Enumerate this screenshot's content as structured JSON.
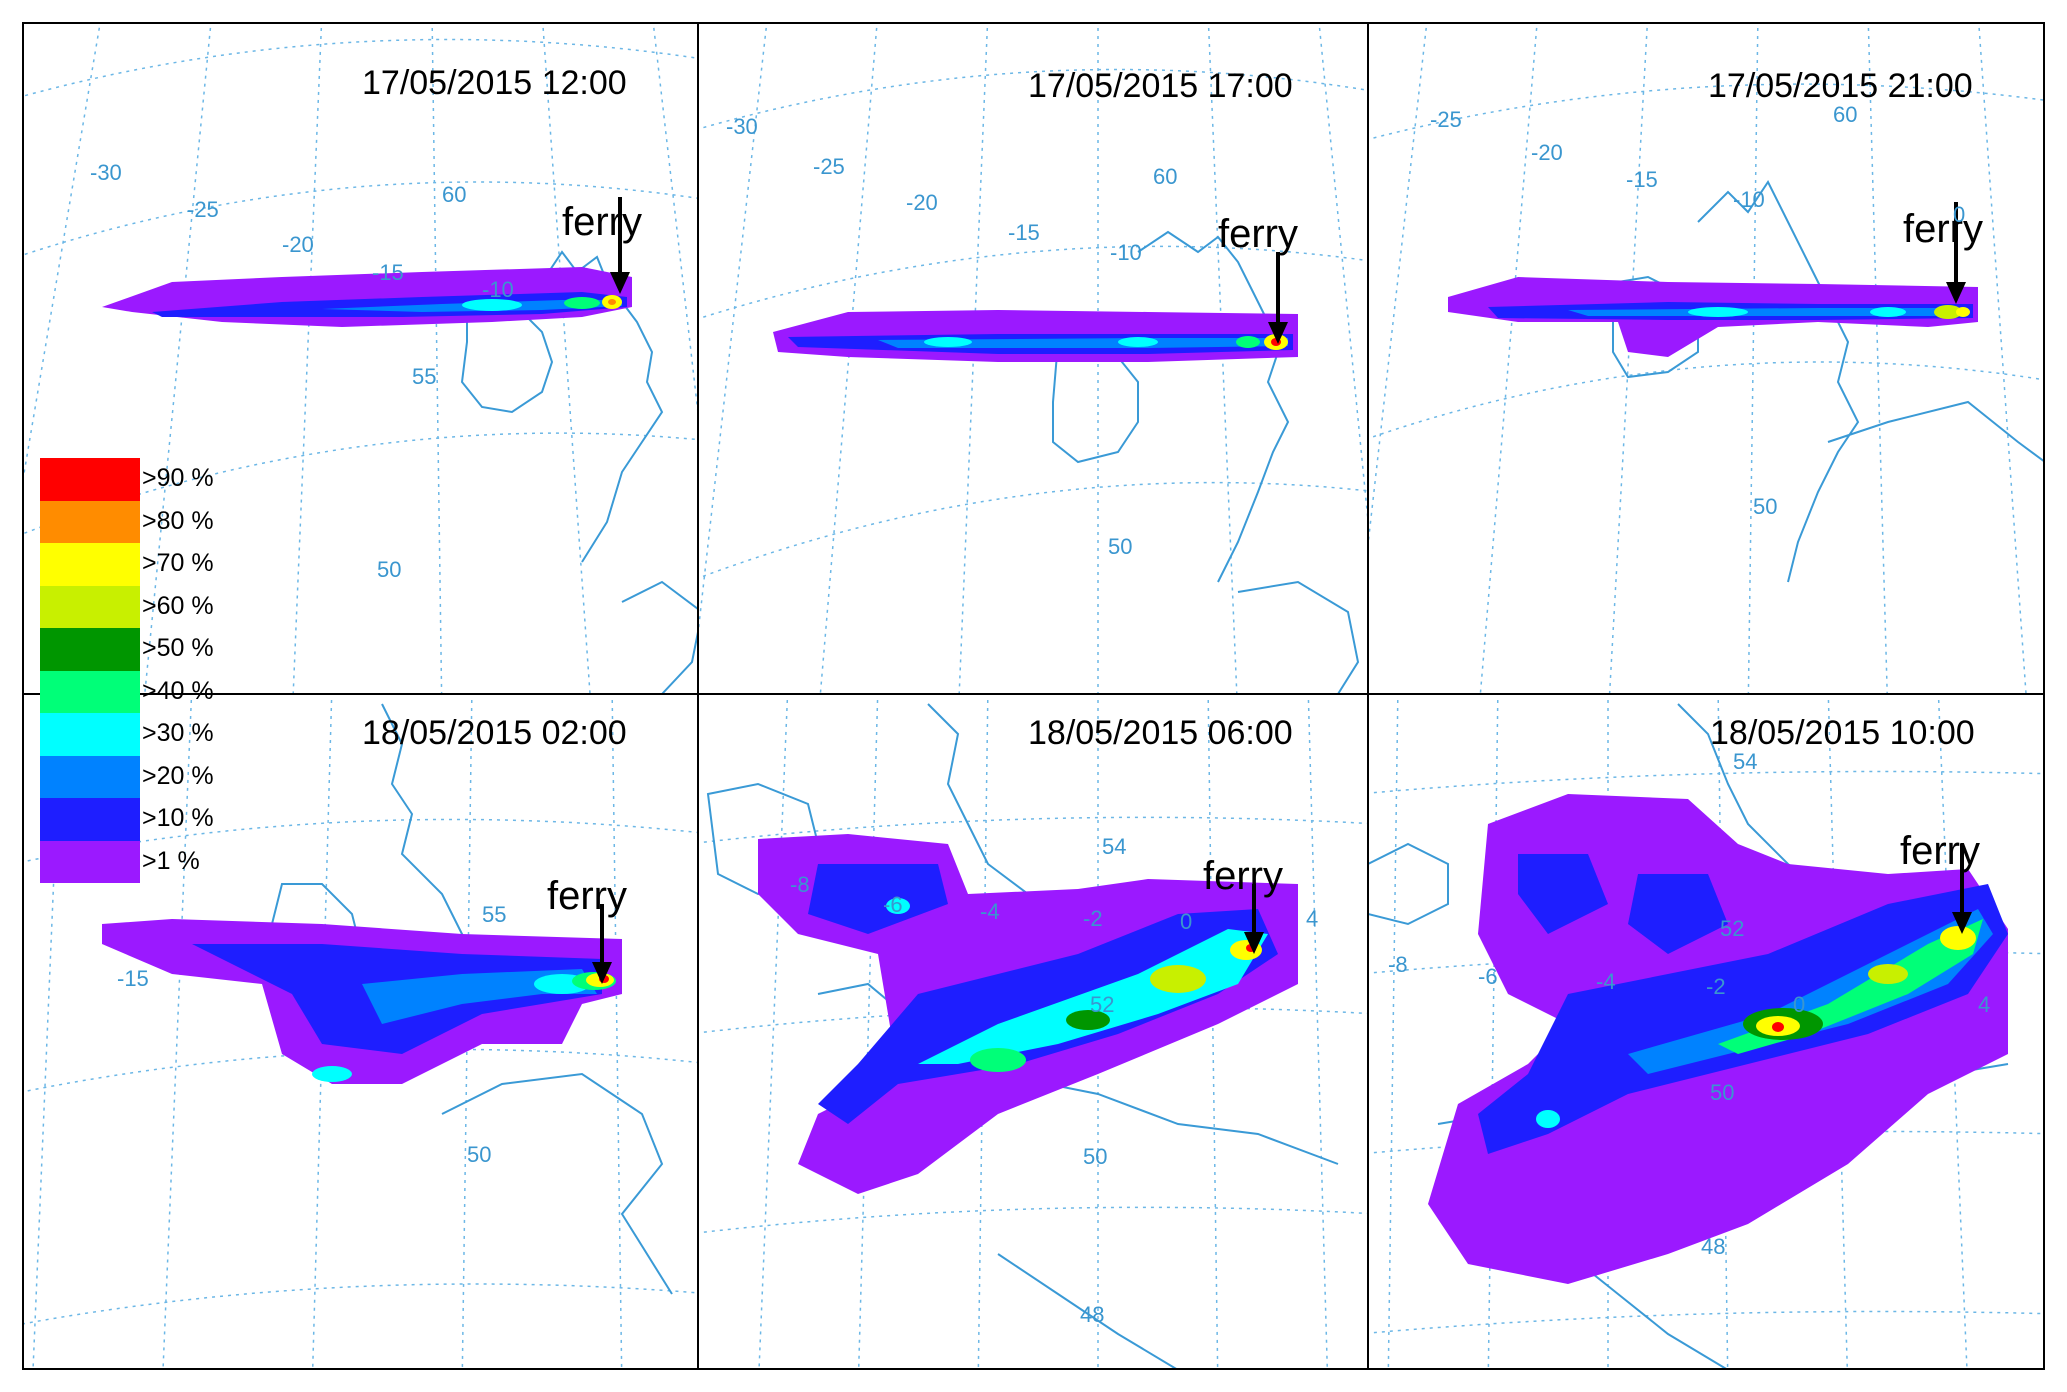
{
  "colors": {
    "coast": "#3a9ad6",
    "graticule": "#6cb7e6",
    "grid_label": "#3a96cf",
    "frame": "#000000"
  },
  "legend": {
    "items": [
      {
        "label": ">90 %",
        "color": "#ff0000"
      },
      {
        "label": ">80 %",
        "color": "#ff8c00"
      },
      {
        "label": ">70 %",
        "color": "#ffff00"
      },
      {
        "label": ">60 %",
        "color": "#c8f000"
      },
      {
        "label": ">50 %",
        "color": "#009600"
      },
      {
        "label": ">40 %",
        "color": "#00ff78"
      },
      {
        "label": ">30 %",
        "color": "#00ffff"
      },
      {
        "label": ">20 %",
        "color": "#0082ff"
      },
      {
        "label": ">10 %",
        "color": "#1e1eff"
      },
      {
        "label": ">1 %",
        "color": "#9b19ff"
      }
    ]
  },
  "panels": [
    {
      "timestamp": "17/05/2015 12:00",
      "marker_label": "ferry",
      "lon_labels": [
        "-30",
        "-25",
        "-20",
        "-15",
        "-10"
      ],
      "lat_labels": [
        "60",
        "55",
        "50"
      ]
    },
    {
      "timestamp": "17/05/2015 17:00",
      "marker_label": "ferry",
      "lon_labels": [
        "-30",
        "-25",
        "-20",
        "-15",
        "-10"
      ],
      "lat_labels": [
        "60",
        "50"
      ]
    },
    {
      "timestamp": "17/05/2015 21:00",
      "marker_label": "ferry",
      "lon_labels": [
        "-25",
        "-20",
        "-15",
        "-10",
        "0"
      ],
      "lat_labels": [
        "60",
        "50"
      ]
    },
    {
      "timestamp": "18/05/2015 02:00",
      "marker_label": "ferry",
      "lon_labels": [
        "-15"
      ],
      "lat_labels": [
        "55",
        "50"
      ]
    },
    {
      "timestamp": "18/05/2015 06:00",
      "marker_label": "ferry",
      "lon_labels": [
        "-8",
        "-6",
        "-4",
        "-2",
        "0",
        "4"
      ],
      "lat_labels": [
        "54",
        "52",
        "50",
        "48"
      ]
    },
    {
      "timestamp": "18/05/2015 10:00",
      "marker_label": "ferry",
      "lon_labels": [
        "-8",
        "-6",
        "-4",
        "-2",
        "0",
        "4"
      ],
      "lat_labels": [
        "54",
        "52",
        "50",
        "48"
      ]
    }
  ]
}
